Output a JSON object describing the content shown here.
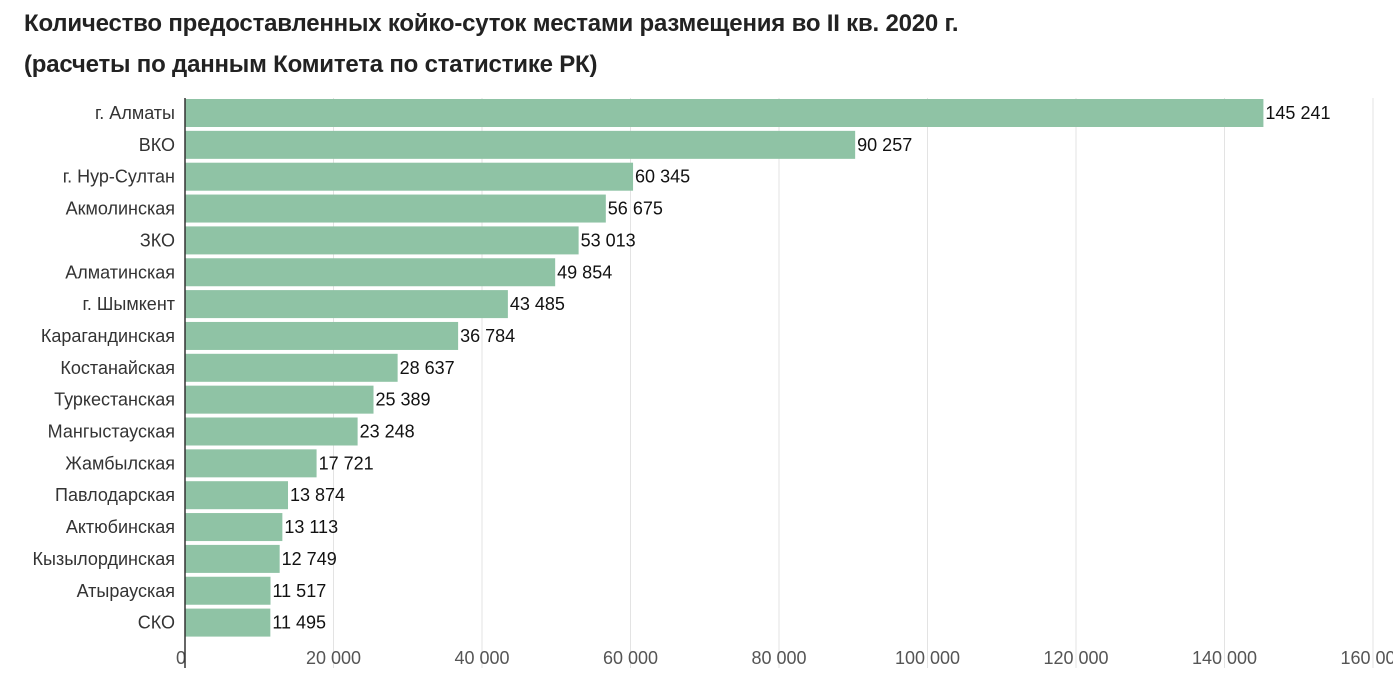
{
  "chart_data": {
    "type": "bar",
    "orientation": "horizontal",
    "title": "Количество предоставленных койко-суток местами размещения во II кв. 2020 г.",
    "subtitle": "(расчеты по данным Комитета по статистике РК)",
    "categories": [
      "г. Алматы",
      "ВКО",
      "г. Нур-Султан",
      "Акмолинская",
      "ЗКО",
      "Алматинская",
      "г. Шымкент",
      "Карагандинская",
      "Костанайская",
      "Туркестанская",
      "Мангыстауская",
      "Жамбылская",
      "Павлодарская",
      "Актюбинская",
      "Кызылординская",
      "Атырауская",
      "СКО"
    ],
    "values": [
      145241,
      90257,
      60345,
      56675,
      53013,
      49854,
      43485,
      36784,
      28637,
      25389,
      23248,
      17721,
      13874,
      13113,
      12749,
      11517,
      11495
    ],
    "value_labels": [
      "145 241",
      "90 257",
      "60 345",
      "56 675",
      "53 013",
      "49 854",
      "43 485",
      "36 784",
      "28 637",
      "25 389",
      "23 248",
      "17 721",
      "13 874",
      "13 113",
      "12 749",
      "11 517",
      "11 495"
    ],
    "xticks": [
      0,
      20000,
      40000,
      60000,
      80000,
      100000,
      120000,
      140000,
      160000
    ],
    "xtick_labels": [
      "0",
      "20 000",
      "40 000",
      "60 000",
      "80 000",
      "100 000",
      "120 000",
      "140 000",
      "160 000"
    ],
    "xlim": [
      0,
      160000
    ],
    "xlabel": "",
    "ylabel": "",
    "grid": true,
    "legend": "none",
    "bar_color": "#8fc3a5"
  }
}
